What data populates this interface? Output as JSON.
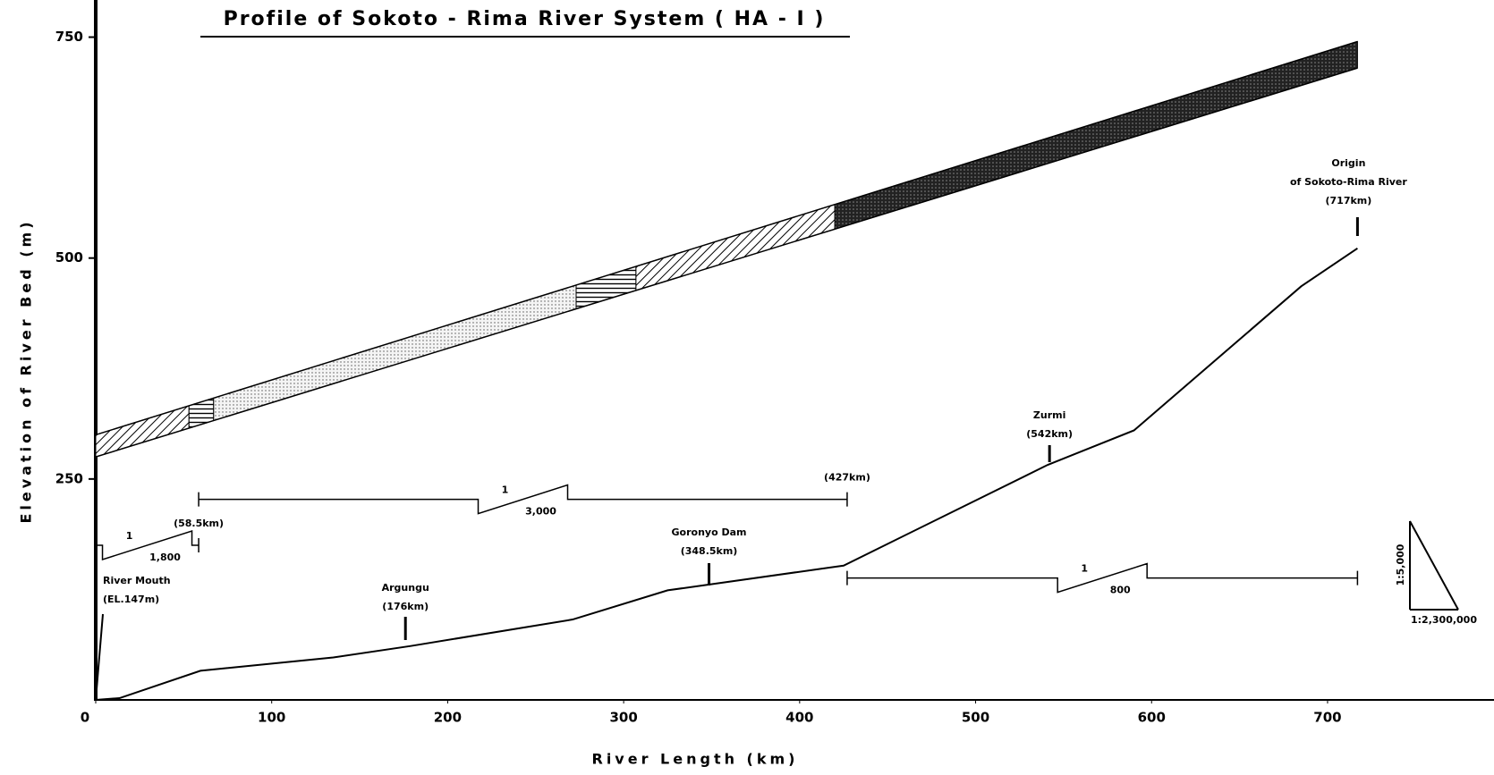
{
  "chart_data": {
    "type": "line",
    "title": "Profile of Sokoto - Rima River System ( HA - I )",
    "x_label": "River Length (km)",
    "y_label": "Elevation of River Bed (m)",
    "xlim": [
      0,
      790
    ],
    "ylim": [
      0,
      790
    ],
    "xticks": [
      0,
      100,
      200,
      300,
      400,
      500,
      600,
      700
    ],
    "yticks": [
      250,
      500,
      750
    ],
    "series": [
      {
        "color": "#000000",
        "x": [
          0,
          13.5,
          59.5,
          135,
          179,
          271,
          325,
          425,
          541,
          590,
          685,
          717
        ],
        "values": [
          0,
          2,
          33,
          48,
          61,
          91,
          124,
          152,
          266,
          305,
          468,
          511
        ]
      }
    ],
    "band": {
      "x": [
        0,
        717
      ],
      "lower": [
        275,
        715
      ],
      "upper": [
        300,
        745
      ],
      "segments": [
        {
          "from": 0,
          "to": 53,
          "fill": "hatch"
        },
        {
          "from": 53,
          "to": 67,
          "fill": "cross"
        },
        {
          "from": 67,
          "to": 273,
          "fill": "dots"
        },
        {
          "from": 273,
          "to": 307,
          "fill": "cross"
        },
        {
          "from": 307,
          "to": 420,
          "fill": "hatch"
        },
        {
          "from": 420,
          "to": 717,
          "fill": "dark"
        }
      ]
    },
    "scales": [
      {
        "from": 0,
        "to": 58.5,
        "level": 175,
        "ratio": [
          "1",
          "1,800"
        ],
        "label": "(58.5km)"
      },
      {
        "from": 58.5,
        "to": 427,
        "level": 227,
        "ratio": [
          "1",
          "3,000"
        ],
        "label": "(427km)"
      },
      {
        "from": 427,
        "to": 717,
        "level": 138,
        "ratio": [
          "1",
          "800"
        ]
      }
    ],
    "annotations": [
      {
        "lines": [
          "River Mouth",
          "(EL.147m)"
        ],
        "x": 0
      },
      {
        "lines": [
          "Argungu",
          "(176km)"
        ],
        "x": 176
      },
      {
        "lines": [
          "Goronyo Dam",
          "(348.5km)"
        ],
        "x": 348.5
      },
      {
        "lines": [
          "Zurmi",
          "(542km)"
        ],
        "x": 542
      },
      {
        "lines": [
          "Origin",
          "of Sokoto-Rima River",
          "(717km)"
        ],
        "x": 717
      }
    ],
    "scale_triangle": {
      "vertical": "1:5,000",
      "horizontal": "1:2,300,000"
    }
  }
}
